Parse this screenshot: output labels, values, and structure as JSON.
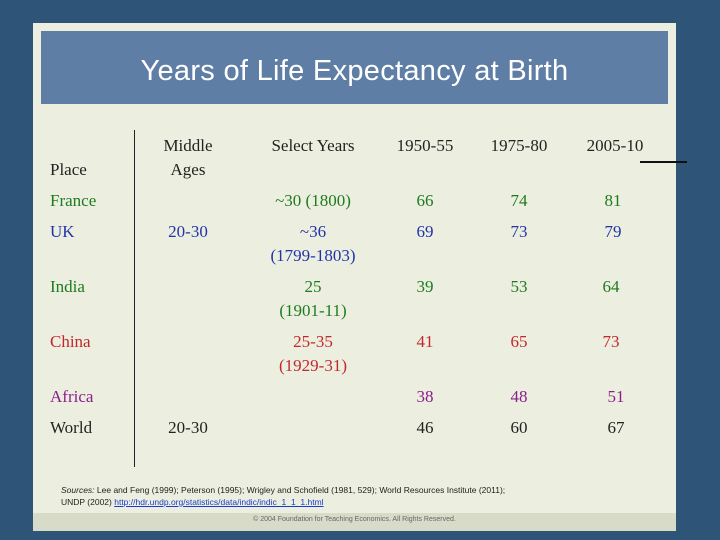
{
  "title": "Years of Life Expectancy at Birth",
  "table": {
    "headers": {
      "place": "Place",
      "middle_ages": [
        "Middle",
        "Ages"
      ],
      "select_years": "Select Years",
      "p1": "1950-55",
      "p2": "1975-80",
      "p3": "2005-10"
    },
    "rows": [
      {
        "place": "France",
        "middle": "",
        "select": [
          "~30 (1800)"
        ],
        "p1": "66",
        "p2": "74",
        "p3": "81"
      },
      {
        "place": "UK",
        "middle": "20-30",
        "select": [
          "~36",
          "(1799-1803)"
        ],
        "p1": "69",
        "p2": "73",
        "p3": "79"
      },
      {
        "place": "India",
        "middle": "",
        "select": [
          "25",
          "(1901-11)"
        ],
        "p1": "39",
        "p2": "53",
        "p3": "64"
      },
      {
        "place": "China",
        "middle": "",
        "select": [
          "25-35",
          "(1929-31)"
        ],
        "p1": "41",
        "p2": "65",
        "p3": "73"
      },
      {
        "place": "Africa",
        "middle": "",
        "select": [],
        "p1": "38",
        "p2": "48",
        "p3": "51"
      },
      {
        "place": "World",
        "middle": "20-30",
        "select": [],
        "p1": "46",
        "p2": "60",
        "p3": "67"
      }
    ]
  },
  "sources": {
    "label": "Sources:",
    "line1": " Lee and Feng (1999); Peterson (1995); Wrigley and Schofield (1981, 529); World Resources Institute (2011);",
    "line2_prefix": "UNDP (2002) ",
    "link": "http://hdr.undp.org/statistics/data/indic/indic_1_1_1.html"
  },
  "footer": "© 2004 Foundation for Teaching Economics. All Rights Reserved.",
  "colors": {
    "background": "#2e5577",
    "slide": "#ecefdf",
    "title_bar": "#5f7ea6",
    "france": "#1f7a1f",
    "uk": "#2233aa",
    "india": "#1f7a1f",
    "china": "#c0282c",
    "africa": "#8a1f8a",
    "world": "#222222"
  }
}
